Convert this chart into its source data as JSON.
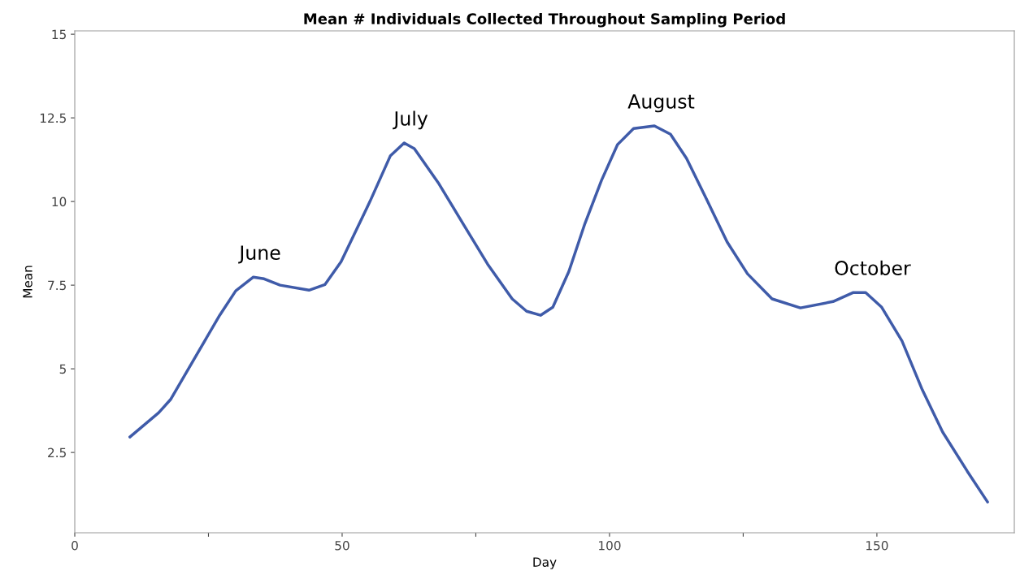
{
  "chart_data": {
    "type": "line",
    "title": "Mean # Individuals Collected Throughout Sampling Period",
    "xlabel": "Day",
    "ylabel": "Mean",
    "xlim": [
      0,
      175.7
    ],
    "ylim": [
      0.1,
      15.1
    ],
    "xticks": [
      0,
      {
        "value": 25,
        "label": null
      },
      50,
      {
        "value": 75,
        "label": null
      },
      100,
      {
        "value": 125,
        "label": null
      },
      150
    ],
    "yticks": [
      {
        "value": 2.5,
        "label": "2.5"
      },
      5,
      {
        "value": 7.5,
        "label": "7.5"
      },
      10,
      {
        "value": 12.5,
        "label": "12.5"
      },
      15
    ],
    "grid": false,
    "marker": "none",
    "line_style": "solid",
    "x": [
      10.3,
      15.7,
      17.9,
      22.5,
      27.1,
      30.1,
      33.4,
      35.4,
      38.4,
      43.8,
      46.8,
      49.8,
      55.2,
      59,
      61.6,
      63.5,
      68.1,
      72.6,
      77.2,
      81.8,
      84.5,
      87.1,
      89.4,
      92.4,
      95.4,
      98.5,
      101.5,
      104.5,
      108.4,
      111.4,
      114.4,
      118.2,
      122,
      125.8,
      130.4,
      135.7,
      141.8,
      145.6,
      147.9,
      150.9,
      154.7,
      158.5,
      162.3,
      166.9,
      170.7
    ],
    "series": [
      {
        "color": "#3f5ba9",
        "values": [
          2.96,
          3.69,
          4.08,
          5.34,
          6.6,
          7.33,
          7.74,
          7.69,
          7.5,
          7.35,
          7.52,
          8.2,
          10,
          11.36,
          11.75,
          11.58,
          10.53,
          9.34,
          8.13,
          7.09,
          6.72,
          6.6,
          6.84,
          7.91,
          9.34,
          10.63,
          11.7,
          12.18,
          12.26,
          12.01,
          11.29,
          10.05,
          8.79,
          7.84,
          7.09,
          6.82,
          7.01,
          7.28,
          7.28,
          6.84,
          5.83,
          4.37,
          3.11,
          1.94,
          1.02
        ]
      }
    ],
    "annotations": [
      {
        "text": "June",
        "x": 33.4,
        "y": 7.74
      },
      {
        "text": "July",
        "x": 61.6,
        "y": 11.75
      },
      {
        "text": "August",
        "x": 108.4,
        "y": 12.26
      },
      {
        "text": "October",
        "x": 147.9,
        "y": 7.28
      }
    ]
  }
}
